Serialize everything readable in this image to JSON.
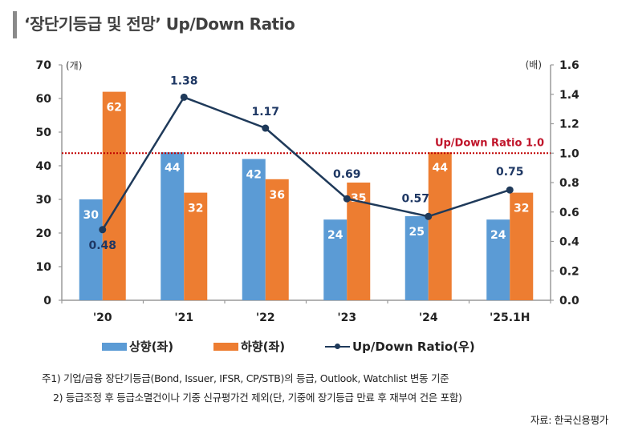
{
  "title": "‘장단기등급 및 전망’ Up/Down Ratio",
  "chart_data": {
    "type": "bar+line",
    "title": "‘장단기등급 및 전망’ Up/Down Ratio",
    "categories": [
      "'20",
      "'21",
      "'22",
      "'23",
      "'24",
      "'25.1H"
    ],
    "series": [
      {
        "name": "상향(좌)",
        "type": "bar",
        "axis": "left",
        "color": "#5b9bd5",
        "values": [
          30,
          44,
          42,
          24,
          25,
          24
        ]
      },
      {
        "name": "하향(좌)",
        "type": "bar",
        "axis": "left",
        "color": "#ed7d31",
        "values": [
          62,
          32,
          36,
          35,
          44,
          32
        ]
      },
      {
        "name": "Up/Down Ratio(우)",
        "type": "line",
        "axis": "right",
        "color": "#1f3a5a",
        "values": [
          0.48,
          1.38,
          1.17,
          0.69,
          0.57,
          0.75
        ]
      }
    ],
    "left_axis": {
      "unit": "(개)",
      "ylim": [
        0,
        70
      ],
      "ticks": [
        "0",
        "10",
        "20",
        "30",
        "40",
        "50",
        "60",
        "70"
      ]
    },
    "right_axis": {
      "unit": "(배)",
      "ylim": [
        0,
        1.6
      ],
      "ticks": [
        "0.0",
        "0.2",
        "0.4",
        "0.6",
        "0.8",
        "1.0",
        "1.2",
        "1.4",
        "1.6"
      ]
    },
    "reference_line": {
      "label": "Up/Down Ratio 1.0",
      "value": 1.0,
      "axis": "right",
      "color": "#c00000",
      "style": "dotted"
    },
    "ratio_labels": [
      "0.48",
      "1.38",
      "1.17",
      "0.69",
      "0.57",
      "0.75"
    ],
    "grid": false,
    "legend_position": "bottom"
  },
  "legend": [
    {
      "label": "상향(좌)",
      "color": "#5b9bd5"
    },
    {
      "label": "하향(좌)",
      "color": "#ed7d31"
    },
    {
      "label": "Up/Down Ratio(우)",
      "color": "#1f3a5a"
    }
  ],
  "notes": {
    "note1": "주1) 기업/금융 장단기등급(Bond, Issuer, IFSR, CP/STB)의 등급, Outlook, Watchlist 변동 기준",
    "note2": "2) 등급조정 후 등급소멸건이나 기중 신규평가건 제외(단, 기중에 장기등급 만료 후 재부여 건은 포함)",
    "source": "자료: 한국신용평가"
  }
}
